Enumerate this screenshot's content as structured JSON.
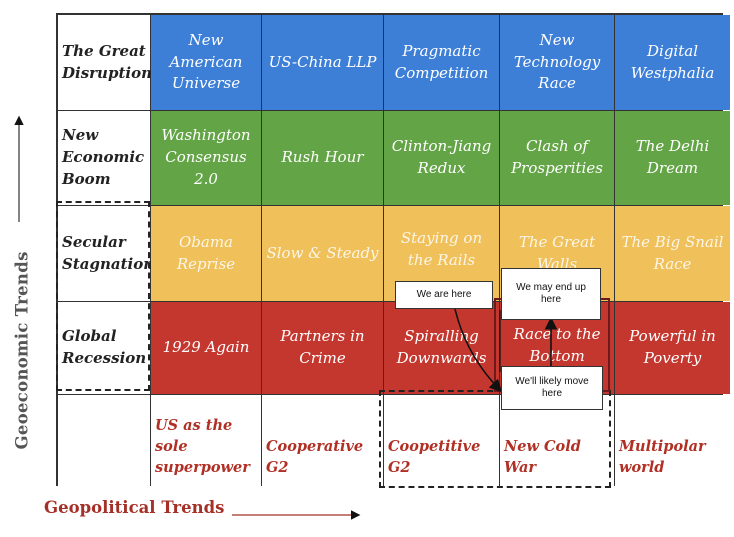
{
  "rows": [
    {
      "label": "The Great Disruption",
      "cells": [
        "New American Universe",
        "US-China LLP",
        "Pragmatic Competition",
        "New Technology Race",
        "Digital Westphalia"
      ]
    },
    {
      "label": "New Economic Boom",
      "cells": [
        "Washington Consensus 2.0",
        "Rush Hour",
        "Clinton-Jiang Redux",
        "Clash of Prosperities",
        "The Delhi Dream"
      ]
    },
    {
      "label": "Secular Stagnation",
      "cells": [
        "Obama Reprise",
        "Slow & Steady",
        "Staying on the Rails",
        "The Great Walls",
        "The Big Snail Race"
      ]
    },
    {
      "label": "Global Recession",
      "cells": [
        "1929 Again",
        "Partners in Crime",
        "Spiralling Downwards",
        "Race to the Bottom",
        "Powerful in Poverty"
      ]
    }
  ],
  "columns": [
    "US as the sole superpower",
    "Cooperative G2",
    "Coopetitive G2",
    "New Cold War",
    "Multipolar world"
  ],
  "callouts": {
    "here": "We are here",
    "may": "We may end up here",
    "likely": "We'll likely move here"
  },
  "axes": {
    "y": "Geoeconomic Trends",
    "x": "Geopolitical Trends"
  },
  "colors": {
    "disruption": "#3d7fd6",
    "boom": "#63a546",
    "stagnation": "#f0c05a",
    "recession": "#c4372f",
    "column_text": "#b03025"
  }
}
